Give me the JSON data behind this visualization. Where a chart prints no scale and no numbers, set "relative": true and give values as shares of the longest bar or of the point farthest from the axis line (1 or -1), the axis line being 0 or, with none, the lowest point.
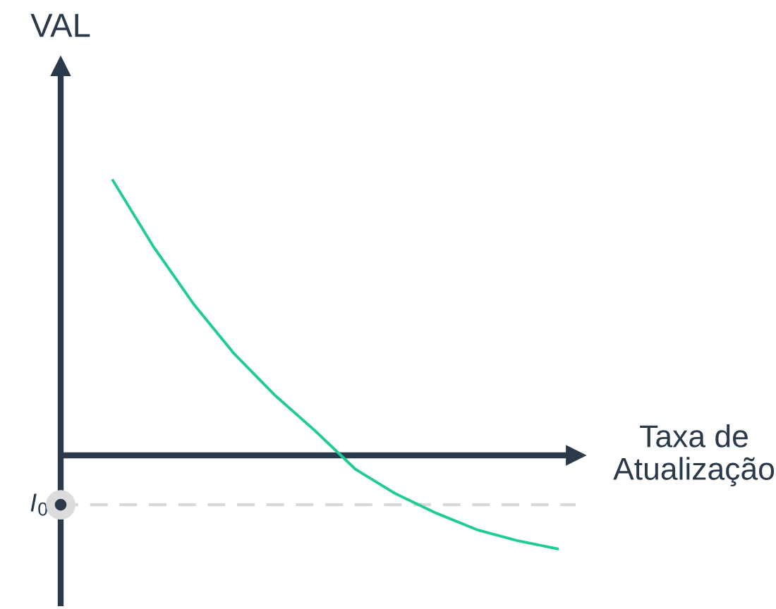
{
  "chart_data": {
    "type": "line",
    "relative": true,
    "xlabel": "Taxa de\nAtualização",
    "ylabel": "VAL",
    "categories": [
      null,
      null,
      null,
      null,
      null,
      null,
      null,
      null,
      null,
      null,
      null,
      null
    ],
    "series": [
      {
        "color": "#1fcc96",
        "values": [
          1,
          0.76,
          0.55,
          0.37,
          0.22,
          0.09,
          -0.05,
          -0.14,
          -0.21,
          -0.27,
          -0.31,
          -0.34
        ]
      }
    ],
    "ref_lines": [
      {
        "axis": "y",
        "value": -0.18,
        "label": "I$_{0}$",
        "color": "#d9d9d9",
        "line_style": "dashed"
      }
    ],
    "legend": false,
    "marker": "none",
    "line_style": "solid"
  }
}
